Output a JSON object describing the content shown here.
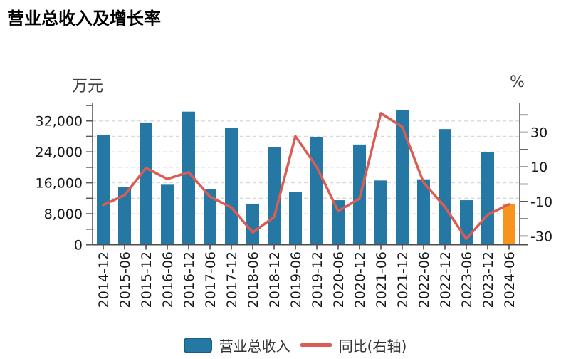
{
  "page": {
    "title": "营业总收入及增长率"
  },
  "legend": [
    {
      "label": "营业总收入",
      "type": "bar"
    },
    {
      "label": "同比(右轴)",
      "type": "line"
    }
  ],
  "colors": {
    "bar": "#2478A3",
    "bar_border": "#1B5F85",
    "bar_highlight": "#F7941E",
    "line": "#D95C55",
    "grid": "#D9D9D9",
    "axis": "#595959",
    "tick_text": "#1A1A1A"
  },
  "chart_data": {
    "type": "bar",
    "title": "营业总收入及增长率",
    "categories": [
      "2014-12",
      "2015-06",
      "2015-12",
      "2016-06",
      "2016-12",
      "2017-06",
      "2017-12",
      "2018-06",
      "2018-12",
      "2019-06",
      "2019-12",
      "2020-06",
      "2020-12",
      "2021-06",
      "2021-12",
      "2022-06",
      "2022-12",
      "2023-06",
      "2023-12",
      "2024-06"
    ],
    "series": [
      {
        "name": "营业总收入",
        "type": "bar",
        "axis": "left",
        "unit": "万元",
        "values": [
          28400,
          14900,
          31600,
          15500,
          34400,
          14300,
          30200,
          10600,
          25300,
          13600,
          27800,
          11500,
          25900,
          16600,
          34800,
          16900,
          29900,
          11500,
          24000,
          10600
        ],
        "highlight_last": true
      },
      {
        "name": "同比(右轴)",
        "type": "line",
        "axis": "right",
        "unit": "%",
        "values": [
          -12.0,
          -6.4,
          9.4,
          3.0,
          6.9,
          -7.3,
          -13.5,
          -27.9,
          -19.0,
          27.7,
          9.8,
          -15.6,
          -8.4,
          41.0,
          33.1,
          0.9,
          -13.2,
          -31.7,
          -17.6,
          -11.7
        ]
      }
    ],
    "left_axis": {
      "label": "万元",
      "tick_values": [
        0,
        8000,
        16000,
        24000,
        32000
      ],
      "minor_step": 4000,
      "max": 36000,
      "min": 0
    },
    "right_axis": {
      "label": "%",
      "tick_values": [
        30,
        10,
        -10,
        -30
      ],
      "minor_step": 10,
      "max": 46.5,
      "min": -35
    },
    "grid": "horizontal dashed every 4000 on left axis",
    "legend_position": "bottom",
    "x_tick_label_rotation": 90
  }
}
